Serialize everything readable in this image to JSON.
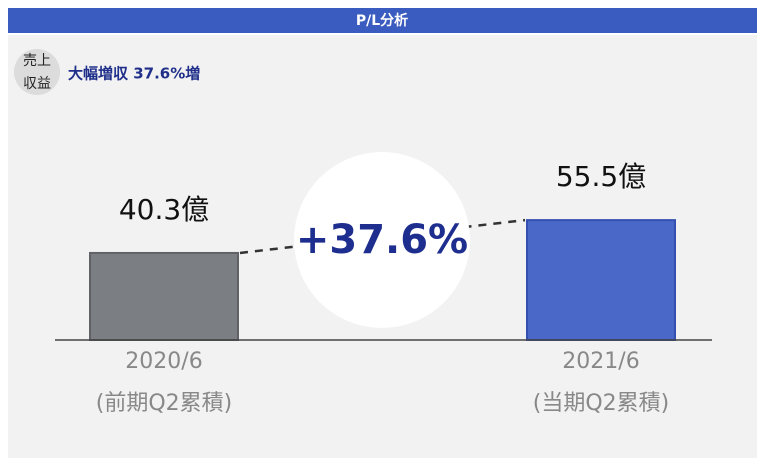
{
  "header": {
    "title": "P/L分析"
  },
  "badge": [
    "売上",
    "収益"
  ],
  "headline": "大幅増収 37.6%増",
  "chart_data": {
    "type": "bar",
    "categories": [
      "2020/6",
      "2021/6"
    ],
    "category_notes": [
      "(前期Q2累積)",
      "(当期Q2累積)"
    ],
    "values": [
      40.3,
      55.5
    ],
    "value_labels": [
      "40.3億",
      "55.5億"
    ],
    "colors": [
      "#7b7f84",
      "#4a68c8"
    ],
    "annotation": "+37.6%"
  }
}
